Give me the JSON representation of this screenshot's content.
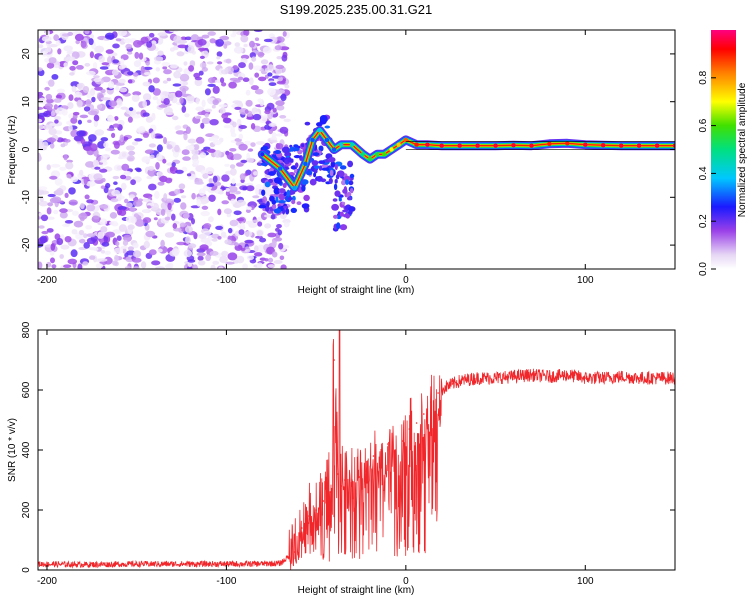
{
  "figure_title": "S199.2025.235.00.31.G21",
  "colors": {
    "signal_line": "#f0262a",
    "scatter": "#8a2be2",
    "strong": "#dd2222"
  },
  "chart_data": [
    {
      "id": "spectrogram",
      "type": "heatmap",
      "title": "S199.2025.235.00.31.G21",
      "xlabel": "Height of straight line (km)",
      "ylabel": "Frequency (Hz)",
      "xlim": [
        -205,
        150
      ],
      "ylim": [
        -25,
        25
      ],
      "x_ticks": [
        -200,
        -100,
        0,
        100
      ],
      "x_tick_labels": [
        "-200",
        "-100",
        "0",
        "100"
      ],
      "y_ticks": [
        -20,
        -10,
        0,
        10,
        20
      ],
      "y_tick_labels": [
        "-20",
        "-10",
        "0",
        "10",
        "20"
      ],
      "colorbar": {
        "label": "Normalized spectral amplitude",
        "range": [
          0,
          1
        ],
        "ticks": [
          0.0,
          0.2,
          0.4,
          0.6,
          0.8
        ],
        "tick_labels": [
          "0.0",
          "0.2",
          "0.4",
          "0.6",
          "0.8"
        ]
      },
      "noise_region_x": [
        -205,
        -70
      ],
      "ridge": {
        "x": [
          -80,
          -70,
          -62,
          -56,
          -52,
          -48,
          -44,
          -40,
          -36,
          -30,
          -24,
          -20,
          -16,
          -12,
          -8,
          -4,
          0,
          6,
          12,
          20,
          30,
          40,
          50,
          60,
          70,
          80,
          90,
          100,
          110,
          120,
          130,
          140,
          150
        ],
        "y": [
          -1,
          -4,
          -8,
          -3,
          2,
          4,
          2,
          0,
          1,
          1,
          -1,
          -2,
          -1,
          -1,
          0,
          1,
          2,
          1,
          1,
          0.8,
          0.8,
          0.8,
          0.8,
          0.9,
          0.8,
          1.2,
          1.3,
          1.0,
          0.9,
          0.8,
          0.8,
          0.8,
          0.8
        ],
        "amplitude": [
          0.25,
          0.3,
          0.35,
          0.3,
          0.3,
          0.4,
          0.3,
          0.3,
          0.4,
          0.45,
          0.5,
          0.55,
          0.55,
          0.6,
          0.7,
          0.75,
          0.85,
          0.9,
          0.95,
          0.95,
          0.95,
          0.95,
          0.95,
          0.95,
          0.95,
          0.9,
          0.9,
          0.95,
          0.95,
          0.95,
          0.95,
          0.95,
          0.95
        ]
      }
    },
    {
      "id": "snr",
      "type": "line",
      "xlabel": "Height of straight line (km)",
      "ylabel": "SNR (10 * v/v)",
      "xlim": [
        -205,
        150
      ],
      "ylim": [
        0,
        800
      ],
      "x_ticks": [
        -200,
        -100,
        0,
        100
      ],
      "x_tick_labels": [
        "-200",
        "-100",
        "0",
        "100"
      ],
      "y_ticks": [
        0,
        200,
        400,
        600,
        800
      ],
      "y_tick_labels": [
        "0",
        "200",
        "400",
        "600",
        "800"
      ],
      "series": [
        {
          "name": "SNR",
          "x": [
            -205,
            -180,
            -150,
            -120,
            -90,
            -70,
            -62,
            -58,
            -54,
            -50,
            -46,
            -42,
            -40,
            -38,
            -36,
            -34,
            -30,
            -26,
            -22,
            -18,
            -14,
            -10,
            -6,
            -2,
            2,
            6,
            10,
            14,
            18,
            22,
            26,
            30,
            40,
            50,
            60,
            70,
            80,
            90,
            100,
            110,
            120,
            130,
            140,
            150
          ],
          "y": [
            20,
            18,
            20,
            20,
            20,
            22,
            60,
            140,
            180,
            200,
            230,
            260,
            700,
            320,
            280,
            300,
            300,
            310,
            330,
            380,
            340,
            420,
            400,
            430,
            470,
            490,
            520,
            560,
            590,
            610,
            620,
            630,
            640,
            640,
            645,
            650,
            645,
            650,
            640,
            640,
            645,
            640,
            640,
            640
          ]
        }
      ]
    }
  ]
}
